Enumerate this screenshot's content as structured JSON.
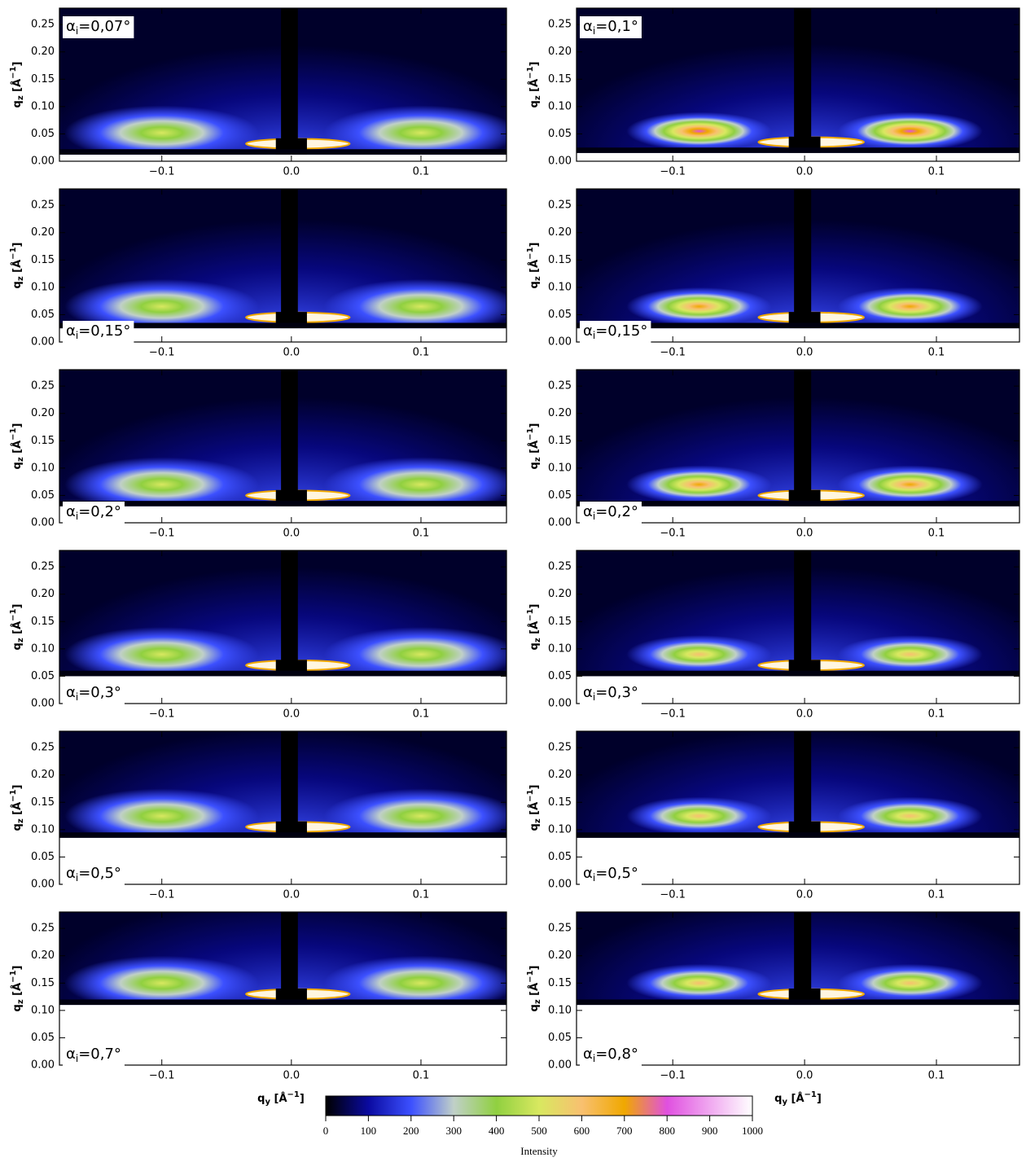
{
  "chart_data": [
    {
      "type": "heatmap",
      "annotation": {
        "symbol": "α",
        "sub": "i",
        "text": "=0,07°"
      },
      "ylabel": {
        "base": "q",
        "sub": "z",
        "unit": " [Å",
        "sup": "−1",
        "end": "]"
      },
      "xlim": [
        -0.179,
        0.166
      ],
      "ylim": [
        0,
        0.28
      ],
      "xticks": [
        {
          "value": -0.1,
          "label": "−0.1"
        },
        {
          "value": 0,
          "label": "0.0"
        },
        {
          "value": 0.1,
          "label": "0.1"
        }
      ],
      "yticks": [
        {
          "value": 0,
          "label": "0.00"
        },
        {
          "value": 0.05,
          "label": "0.05"
        },
        {
          "value": 0.1,
          "label": "0.10"
        },
        {
          "value": 0.15,
          "label": "0.15"
        },
        {
          "value": 0.2,
          "label": "0.20"
        },
        {
          "value": 0.25,
          "label": "0.25"
        }
      ],
      "mask_qz": 0.012
    },
    {
      "type": "heatmap",
      "annotation": {
        "symbol": "α",
        "sub": "i",
        "text": "=0,1°"
      },
      "ylabel": {
        "base": "q",
        "sub": "z",
        "unit": " [Å",
        "sup": "−1",
        "end": "]"
      },
      "xlim": [
        -0.173,
        0.163
      ],
      "ylim": [
        0,
        0.28
      ],
      "xticks": [
        {
          "value": -0.1,
          "label": "−0.1"
        },
        {
          "value": 0,
          "label": "0.0"
        },
        {
          "value": 0.1,
          "label": "0.1"
        }
      ],
      "yticks": [
        {
          "value": 0,
          "label": "0.00"
        },
        {
          "value": 0.05,
          "label": "0.05"
        },
        {
          "value": 0.1,
          "label": "0.10"
        },
        {
          "value": 0.15,
          "label": "0.15"
        },
        {
          "value": 0.2,
          "label": "0.20"
        },
        {
          "value": 0.25,
          "label": "0.25"
        }
      ],
      "mask_qz": 0.015
    },
    {
      "type": "heatmap",
      "annotation": {
        "symbol": "α",
        "sub": "i",
        "text": "=0,15°"
      },
      "ylabel": {
        "base": "q",
        "sub": "z",
        "unit": " [Å",
        "sup": "−1",
        "end": "]"
      },
      "xlim": [
        -0.179,
        0.166
      ],
      "ylim": [
        0,
        0.28
      ],
      "xticks": [
        {
          "value": -0.1,
          "label": "−0.1"
        },
        {
          "value": 0,
          "label": "0.0"
        },
        {
          "value": 0.1,
          "label": "0.1"
        }
      ],
      "yticks": [
        {
          "value": 0,
          "label": "0.00"
        },
        {
          "value": 0.05,
          "label": "0.05"
        },
        {
          "value": 0.1,
          "label": "0.10"
        },
        {
          "value": 0.15,
          "label": "0.15"
        },
        {
          "value": 0.2,
          "label": "0.20"
        },
        {
          "value": 0.25,
          "label": "0.25"
        }
      ],
      "mask_qz": 0.025
    },
    {
      "type": "heatmap",
      "annotation": {
        "symbol": "α",
        "sub": "i",
        "text": "=0,15°"
      },
      "ylabel": {
        "base": "q",
        "sub": "z",
        "unit": " [Å",
        "sup": "−1",
        "end": "]"
      },
      "xlim": [
        -0.173,
        0.163
      ],
      "ylim": [
        0,
        0.28
      ],
      "xticks": [
        {
          "value": -0.1,
          "label": "−0.1"
        },
        {
          "value": 0,
          "label": "0.0"
        },
        {
          "value": 0.1,
          "label": "0.1"
        }
      ],
      "yticks": [
        {
          "value": 0,
          "label": "0.00"
        },
        {
          "value": 0.05,
          "label": "0.05"
        },
        {
          "value": 0.1,
          "label": "0.10"
        },
        {
          "value": 0.15,
          "label": "0.15"
        },
        {
          "value": 0.2,
          "label": "0.20"
        },
        {
          "value": 0.25,
          "label": "0.25"
        }
      ],
      "mask_qz": 0.025
    },
    {
      "type": "heatmap",
      "annotation": {
        "symbol": "α",
        "sub": "i",
        "text": "=0,2°"
      },
      "ylabel": {
        "base": "q",
        "sub": "z",
        "unit": " [Å",
        "sup": "−1",
        "end": "]"
      },
      "xlim": [
        -0.179,
        0.166
      ],
      "ylim": [
        0,
        0.28
      ],
      "xticks": [
        {
          "value": -0.1,
          "label": "−0.1"
        },
        {
          "value": 0,
          "label": "0.0"
        },
        {
          "value": 0.1,
          "label": "0.1"
        }
      ],
      "yticks": [
        {
          "value": 0,
          "label": "0.00"
        },
        {
          "value": 0.05,
          "label": "0.05"
        },
        {
          "value": 0.1,
          "label": "0.10"
        },
        {
          "value": 0.15,
          "label": "0.15"
        },
        {
          "value": 0.2,
          "label": "0.20"
        },
        {
          "value": 0.25,
          "label": "0.25"
        }
      ],
      "mask_qz": 0.03
    },
    {
      "type": "heatmap",
      "annotation": {
        "symbol": "α",
        "sub": "i",
        "text": "=0,2°"
      },
      "ylabel": {
        "base": "q",
        "sub": "z",
        "unit": " [Å",
        "sup": "−1",
        "end": "]"
      },
      "xlim": [
        -0.173,
        0.163
      ],
      "ylim": [
        0,
        0.28
      ],
      "xticks": [
        {
          "value": -0.1,
          "label": "−0.1"
        },
        {
          "value": 0,
          "label": "0.0"
        },
        {
          "value": 0.1,
          "label": "0.1"
        }
      ],
      "yticks": [
        {
          "value": 0,
          "label": "0.00"
        },
        {
          "value": 0.05,
          "label": "0.05"
        },
        {
          "value": 0.1,
          "label": "0.10"
        },
        {
          "value": 0.15,
          "label": "0.15"
        },
        {
          "value": 0.2,
          "label": "0.20"
        },
        {
          "value": 0.25,
          "label": "0.25"
        }
      ],
      "mask_qz": 0.03
    },
    {
      "type": "heatmap",
      "annotation": {
        "symbol": "α",
        "sub": "i",
        "text": "=0,3°"
      },
      "ylabel": {
        "base": "q",
        "sub": "z",
        "unit": " [Å",
        "sup": "−1",
        "end": "]"
      },
      "xlim": [
        -0.179,
        0.166
      ],
      "ylim": [
        0,
        0.28
      ],
      "xticks": [
        {
          "value": -0.1,
          "label": "−0.1"
        },
        {
          "value": 0,
          "label": "0.0"
        },
        {
          "value": 0.1,
          "label": "0.1"
        }
      ],
      "yticks": [
        {
          "value": 0,
          "label": "0.00"
        },
        {
          "value": 0.05,
          "label": "0.05"
        },
        {
          "value": 0.1,
          "label": "0.10"
        },
        {
          "value": 0.15,
          "label": "0.15"
        },
        {
          "value": 0.2,
          "label": "0.20"
        },
        {
          "value": 0.25,
          "label": "0.25"
        }
      ],
      "mask_qz": 0.05
    },
    {
      "type": "heatmap",
      "annotation": {
        "symbol": "α",
        "sub": "i",
        "text": "=0,3°"
      },
      "ylabel": {
        "base": "q",
        "sub": "z",
        "unit": " [Å",
        "sup": "−1",
        "end": "]"
      },
      "xlim": [
        -0.173,
        0.163
      ],
      "ylim": [
        0,
        0.28
      ],
      "xticks": [
        {
          "value": -0.1,
          "label": "−0.1"
        },
        {
          "value": 0,
          "label": "0.0"
        },
        {
          "value": 0.1,
          "label": "0.1"
        }
      ],
      "yticks": [
        {
          "value": 0,
          "label": "0.00"
        },
        {
          "value": 0.05,
          "label": "0.05"
        },
        {
          "value": 0.1,
          "label": "0.10"
        },
        {
          "value": 0.15,
          "label": "0.15"
        },
        {
          "value": 0.2,
          "label": "0.20"
        },
        {
          "value": 0.25,
          "label": "0.25"
        }
      ],
      "mask_qz": 0.05
    },
    {
      "type": "heatmap",
      "annotation": {
        "symbol": "α",
        "sub": "i",
        "text": "=0,5°"
      },
      "ylabel": {
        "base": "q",
        "sub": "z",
        "unit": " [Å",
        "sup": "−1",
        "end": "]"
      },
      "xlim": [
        -0.179,
        0.166
      ],
      "ylim": [
        0,
        0.28
      ],
      "xticks": [
        {
          "value": -0.1,
          "label": "−0.1"
        },
        {
          "value": 0,
          "label": "0.0"
        },
        {
          "value": 0.1,
          "label": "0.1"
        }
      ],
      "yticks": [
        {
          "value": 0,
          "label": "0.00"
        },
        {
          "value": 0.05,
          "label": "0.05"
        },
        {
          "value": 0.1,
          "label": "0.10"
        },
        {
          "value": 0.15,
          "label": "0.15"
        },
        {
          "value": 0.2,
          "label": "0.20"
        },
        {
          "value": 0.25,
          "label": "0.25"
        }
      ],
      "mask_qz": 0.085
    },
    {
      "type": "heatmap",
      "annotation": {
        "symbol": "α",
        "sub": "i",
        "text": "=0,5°"
      },
      "ylabel": {
        "base": "q",
        "sub": "z",
        "unit": " [Å",
        "sup": "−1",
        "end": "]"
      },
      "xlim": [
        -0.173,
        0.163
      ],
      "ylim": [
        0,
        0.28
      ],
      "xticks": [
        {
          "value": -0.1,
          "label": "−0.1"
        },
        {
          "value": 0,
          "label": "0.0"
        },
        {
          "value": 0.1,
          "label": "0.1"
        }
      ],
      "yticks": [
        {
          "value": 0,
          "label": "0.00"
        },
        {
          "value": 0.05,
          "label": "0.05"
        },
        {
          "value": 0.1,
          "label": "0.10"
        },
        {
          "value": 0.15,
          "label": "0.15"
        },
        {
          "value": 0.2,
          "label": "0.20"
        },
        {
          "value": 0.25,
          "label": "0.25"
        }
      ],
      "mask_qz": 0.085
    },
    {
      "type": "heatmap",
      "annotation": {
        "symbol": "α",
        "sub": "i",
        "text": "=0,7°"
      },
      "ylabel": {
        "base": "q",
        "sub": "z",
        "unit": " [Å",
        "sup": "−1",
        "end": "]"
      },
      "xlabel": {
        "base": "q",
        "sub": "y",
        "unit": " [Å",
        "sup": "−1",
        "end": "]"
      },
      "xlim": [
        -0.179,
        0.166
      ],
      "ylim": [
        0,
        0.28
      ],
      "xticks": [
        {
          "value": -0.1,
          "label": "−0.1"
        },
        {
          "value": 0,
          "label": "0.0"
        },
        {
          "value": 0.1,
          "label": "0.1"
        }
      ],
      "yticks": [
        {
          "value": 0,
          "label": "0.00"
        },
        {
          "value": 0.05,
          "label": "0.05"
        },
        {
          "value": 0.1,
          "label": "0.10"
        },
        {
          "value": 0.15,
          "label": "0.15"
        },
        {
          "value": 0.2,
          "label": "0.20"
        },
        {
          "value": 0.25,
          "label": "0.25"
        }
      ],
      "mask_qz": 0.11
    },
    {
      "type": "heatmap",
      "annotation": {
        "symbol": "α",
        "sub": "i",
        "text": "=0,8°"
      },
      "ylabel": {
        "base": "q",
        "sub": "z",
        "unit": " [Å",
        "sup": "−1",
        "end": "]"
      },
      "xlabel": {
        "base": "q",
        "sub": "y",
        "unit": " [Å",
        "sup": "−1",
        "end": "]"
      },
      "xlim": [
        -0.173,
        0.163
      ],
      "ylim": [
        0,
        0.28
      ],
      "xticks": [
        {
          "value": -0.1,
          "label": "−0.1"
        },
        {
          "value": 0,
          "label": "0.0"
        },
        {
          "value": 0.1,
          "label": "0.1"
        }
      ],
      "yticks": [
        {
          "value": 0,
          "label": "0.00"
        },
        {
          "value": 0.05,
          "label": "0.05"
        },
        {
          "value": 0.1,
          "label": "0.10"
        },
        {
          "value": 0.15,
          "label": "0.15"
        },
        {
          "value": 0.2,
          "label": "0.20"
        },
        {
          "value": 0.25,
          "label": "0.25"
        }
      ],
      "mask_qz": 0.11
    },
    {
      "type": "colorbar",
      "xlabel": "Intensity",
      "xlim": [
        0,
        1000
      ],
      "xticks": [
        0,
        100,
        200,
        300,
        400,
        500,
        600,
        700,
        800,
        900,
        1000
      ],
      "colors": [
        "#000000",
        "#0a0aa0",
        "#3c50ff",
        "#c0d0c8",
        "#90d040",
        "#d8e860",
        "#f8c070",
        "#f0a800",
        "#e050e0",
        "#f0a8f0",
        "#ffffff"
      ]
    }
  ]
}
